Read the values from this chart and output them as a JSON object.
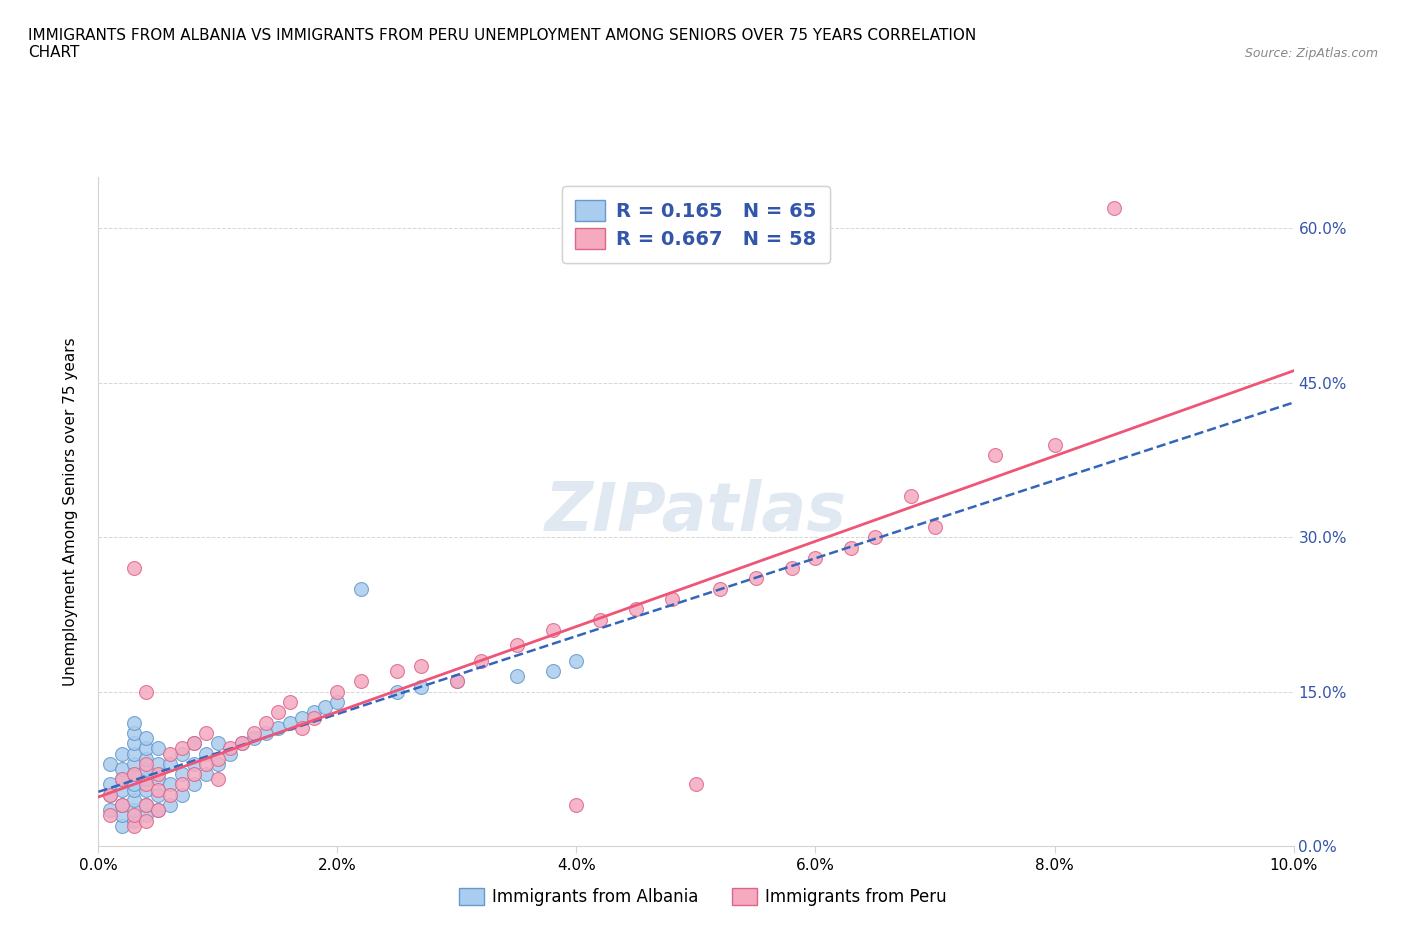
{
  "title": "IMMIGRANTS FROM ALBANIA VS IMMIGRANTS FROM PERU UNEMPLOYMENT AMONG SENIORS OVER 75 YEARS CORRELATION\nCHART",
  "source": "Source: ZipAtlas.com",
  "ylabel": "Unemployment Among Seniors over 75 years",
  "xlim": [
    0.0,
    0.1
  ],
  "ylim": [
    0.0,
    0.65
  ],
  "xticks": [
    0.0,
    0.02,
    0.04,
    0.06,
    0.08,
    0.1
  ],
  "yticks": [
    0.0,
    0.15,
    0.3,
    0.45,
    0.6
  ],
  "xtick_labels": [
    "0.0%",
    "2.0%",
    "4.0%",
    "6.0%",
    "8.0%",
    "10.0%"
  ],
  "ytick_labels": [
    "0.0%",
    "15.0%",
    "30.0%",
    "45.0%",
    "60.0%"
  ],
  "albania_color": "#aaccee",
  "peru_color": "#f5aac0",
  "albania_edge": "#6699cc",
  "peru_edge": "#dd6688",
  "albania_line_color": "#3366bb",
  "peru_line_color": "#ee5577",
  "albania_R": 0.165,
  "albania_N": 65,
  "peru_R": 0.667,
  "peru_N": 58,
  "legend_text_color": "#3355aa",
  "watermark": "ZIPatlas",
  "albania_x": [
    0.001,
    0.001,
    0.001,
    0.001,
    0.002,
    0.002,
    0.002,
    0.002,
    0.002,
    0.002,
    0.002,
    0.003,
    0.003,
    0.003,
    0.003,
    0.003,
    0.003,
    0.003,
    0.003,
    0.003,
    0.003,
    0.003,
    0.004,
    0.004,
    0.004,
    0.004,
    0.004,
    0.004,
    0.004,
    0.004,
    0.005,
    0.005,
    0.005,
    0.005,
    0.005,
    0.006,
    0.006,
    0.006,
    0.007,
    0.007,
    0.007,
    0.008,
    0.008,
    0.008,
    0.009,
    0.009,
    0.01,
    0.01,
    0.011,
    0.012,
    0.013,
    0.014,
    0.015,
    0.016,
    0.017,
    0.018,
    0.019,
    0.02,
    0.022,
    0.025,
    0.027,
    0.03,
    0.035,
    0.038,
    0.04
  ],
  "albania_y": [
    0.035,
    0.05,
    0.06,
    0.08,
    0.02,
    0.03,
    0.04,
    0.055,
    0.065,
    0.075,
    0.09,
    0.025,
    0.035,
    0.045,
    0.055,
    0.06,
    0.07,
    0.08,
    0.09,
    0.1,
    0.11,
    0.12,
    0.03,
    0.04,
    0.055,
    0.065,
    0.075,
    0.085,
    0.095,
    0.105,
    0.035,
    0.05,
    0.065,
    0.08,
    0.095,
    0.04,
    0.06,
    0.08,
    0.05,
    0.07,
    0.09,
    0.06,
    0.08,
    0.1,
    0.07,
    0.09,
    0.08,
    0.1,
    0.09,
    0.1,
    0.105,
    0.11,
    0.115,
    0.12,
    0.125,
    0.13,
    0.135,
    0.14,
    0.25,
    0.15,
    0.155,
    0.16,
    0.165,
    0.17,
    0.18
  ],
  "peru_x": [
    0.001,
    0.001,
    0.002,
    0.002,
    0.003,
    0.003,
    0.003,
    0.003,
    0.004,
    0.004,
    0.004,
    0.004,
    0.004,
    0.005,
    0.005,
    0.005,
    0.006,
    0.006,
    0.007,
    0.007,
    0.008,
    0.008,
    0.009,
    0.009,
    0.01,
    0.01,
    0.011,
    0.012,
    0.013,
    0.014,
    0.015,
    0.016,
    0.017,
    0.018,
    0.02,
    0.022,
    0.025,
    0.027,
    0.03,
    0.032,
    0.035,
    0.038,
    0.04,
    0.042,
    0.045,
    0.048,
    0.05,
    0.052,
    0.055,
    0.058,
    0.06,
    0.063,
    0.065,
    0.068,
    0.07,
    0.075,
    0.08,
    0.085
  ],
  "peru_y": [
    0.03,
    0.05,
    0.04,
    0.065,
    0.02,
    0.03,
    0.07,
    0.27,
    0.025,
    0.04,
    0.06,
    0.08,
    0.15,
    0.035,
    0.055,
    0.07,
    0.05,
    0.09,
    0.06,
    0.095,
    0.07,
    0.1,
    0.08,
    0.11,
    0.065,
    0.085,
    0.095,
    0.1,
    0.11,
    0.12,
    0.13,
    0.14,
    0.115,
    0.125,
    0.15,
    0.16,
    0.17,
    0.175,
    0.16,
    0.18,
    0.195,
    0.21,
    0.04,
    0.22,
    0.23,
    0.24,
    0.06,
    0.25,
    0.26,
    0.27,
    0.28,
    0.29,
    0.3,
    0.34,
    0.31,
    0.38,
    0.39,
    0.62
  ]
}
